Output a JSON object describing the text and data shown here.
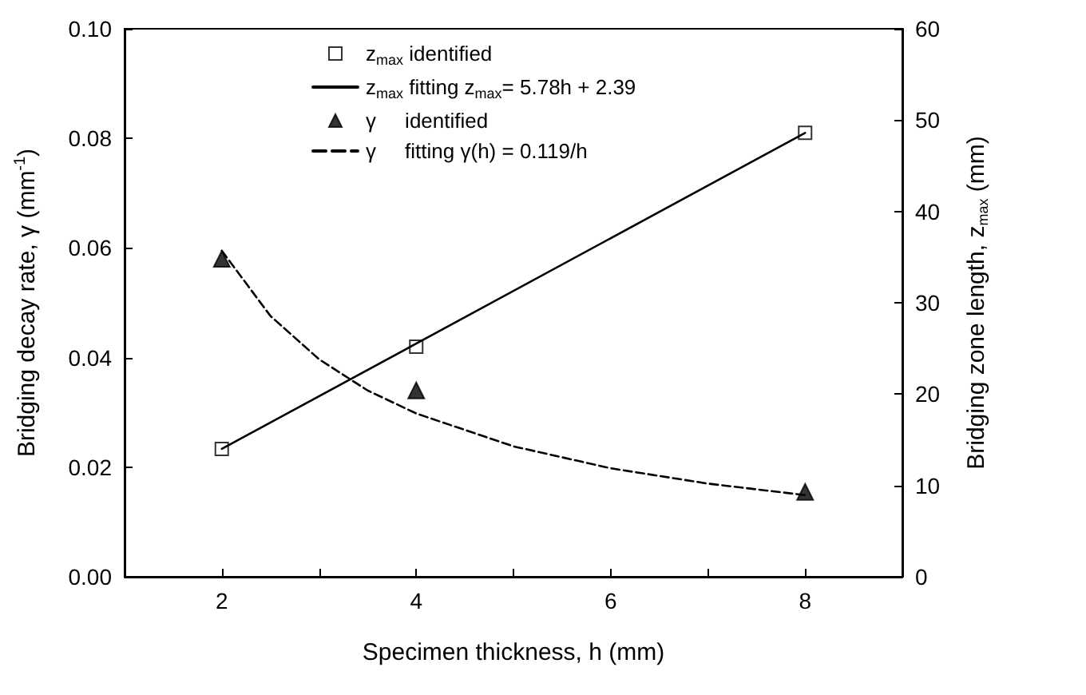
{
  "chart_data": {
    "type": "scatter",
    "xlabel": "Specimen thickness, h (mm)",
    "ylabel": "Bridging decay rate, γ (mm$^{-1}$)",
    "y2label": "Bridging zone length, z$_{max}$ (mm)",
    "xlim": [
      1,
      9
    ],
    "xticks": [
      {
        "value": 1,
        "label": null
      },
      2,
      {
        "value": 3,
        "label": null
      },
      4,
      {
        "value": 5,
        "label": null
      },
      6,
      {
        "value": 7,
        "label": null
      },
      8,
      {
        "value": 9,
        "label": null
      }
    ],
    "ylim": [
      0,
      0.1
    ],
    "yticks": [
      {
        "value": 0,
        "label": "0.00"
      },
      {
        "value": 0.02,
        "label": "0.02"
      },
      {
        "value": 0.04,
        "label": "0.04"
      },
      {
        "value": 0.06,
        "label": "0.06"
      },
      {
        "value": 0.08,
        "label": "0.08"
      },
      {
        "value": 0.1,
        "label": "0.10"
      }
    ],
    "y2lim": [
      0,
      60
    ],
    "y2ticks": [
      0,
      10,
      20,
      30,
      40,
      50,
      60
    ],
    "grid": false,
    "legend": "top",
    "series": [
      {
        "name": "z$_{max}$ identified",
        "marker": "square",
        "axis": "y2",
        "color": "#000000",
        "x": [
          2,
          4,
          8
        ],
        "values": [
          14,
          25.2,
          48.6
        ]
      },
      {
        "name": "z$_{max}$ fitting z$_{max}$= 5.78h + 2.39",
        "type": "line",
        "marker": "none",
        "line_style": "solid",
        "axis": "y2",
        "color": "#000000",
        "x": [
          2,
          8
        ],
        "values": [
          14.0,
          48.6
        ]
      },
      {
        "name": "γ     identified",
        "marker": "triangle",
        "axis": "y",
        "color": "#000000",
        "x": [
          2,
          4,
          8
        ],
        "values": [
          0.058,
          0.034,
          0.0155
        ]
      },
      {
        "name": "γ     fitting γ(h) = 0.119/h",
        "type": "line",
        "marker": "none",
        "line_style": "dashed",
        "axis": "y",
        "color": "#000000",
        "x": [
          2,
          2.5,
          3,
          3.5,
          4,
          5,
          6,
          7,
          8
        ],
        "values": [
          0.0595,
          0.0476,
          0.0397,
          0.034,
          0.0298,
          0.0238,
          0.0198,
          0.017,
          0.0149
        ]
      }
    ]
  }
}
